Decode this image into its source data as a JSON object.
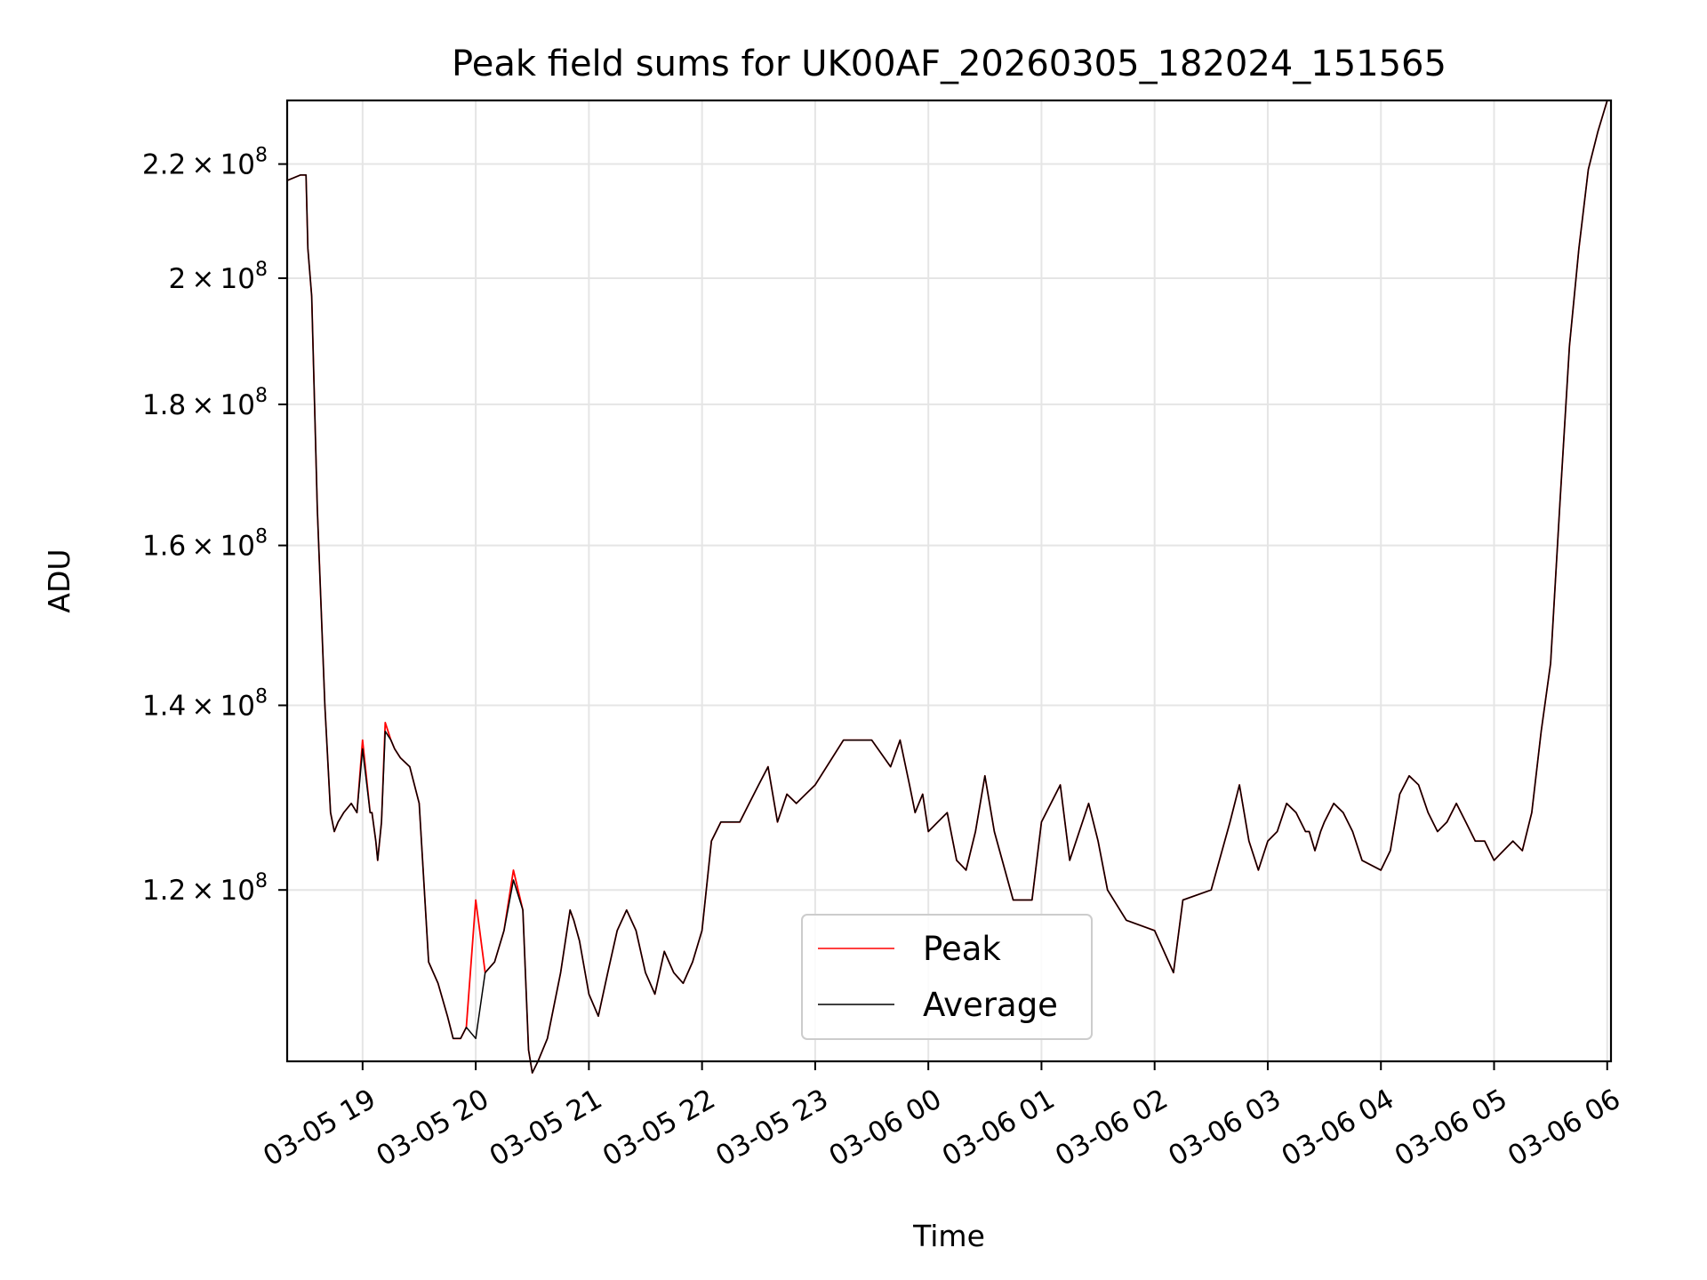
{
  "chart_data": {
    "type": "line",
    "title": "Peak field sums for UK00AF_20260305_182024_151565",
    "xlabel": "Time",
    "ylabel": "ADU",
    "x_scale": "time",
    "y_scale": "log",
    "xlim": [
      "2026-03-05 18:20",
      "2026-03-06 06:02"
    ],
    "ylim": [
      104000000,
      232000000
    ],
    "grid": true,
    "legend_position": "lower center",
    "x_ticks": [
      "2026-03-05 19:00",
      "2026-03-05 20:00",
      "2026-03-05 21:00",
      "2026-03-05 22:00",
      "2026-03-05 23:00",
      "2026-03-06 00:00",
      "2026-03-06 01:00",
      "2026-03-06 02:00",
      "2026-03-06 03:00",
      "2026-03-06 04:00",
      "2026-03-06 05:00",
      "2026-03-06 06:00"
    ],
    "x_tick_labels": [
      "03-05 19",
      "03-05 20",
      "03-05 21",
      "03-05 22",
      "03-05 23",
      "03-06 00",
      "03-06 01",
      "03-06 02",
      "03-06 03",
      "03-06 04",
      "03-06 05",
      "03-06 06"
    ],
    "y_ticks": [
      120000000,
      140000000,
      160000000,
      180000000,
      200000000,
      220000000
    ],
    "y_tick_labels": [
      {
        "mantissa": "1.2",
        "exp": "8"
      },
      {
        "mantissa": "1.4",
        "exp": "8"
      },
      {
        "mantissa": "1.6",
        "exp": "8"
      },
      {
        "mantissa": "1.8",
        "exp": "8"
      },
      {
        "mantissa": "2",
        "exp": "8"
      },
      {
        "mantissa": "2.2",
        "exp": "8"
      }
    ],
    "x": [
      "2026-03-05 18:20",
      "2026-03-05 18:27",
      "2026-03-05 18:30",
      "2026-03-05 18:31",
      "2026-03-05 18:33",
      "2026-03-05 18:36",
      "2026-03-05 18:40",
      "2026-03-05 18:43",
      "2026-03-05 18:45",
      "2026-03-05 18:47",
      "2026-03-05 18:50",
      "2026-03-05 18:54",
      "2026-03-05 18:57",
      "2026-03-05 19:00",
      "2026-03-05 19:04",
      "2026-03-05 19:05",
      "2026-03-05 19:07",
      "2026-03-05 19:08",
      "2026-03-05 19:10",
      "2026-03-05 19:12",
      "2026-03-05 19:15",
      "2026-03-05 19:17",
      "2026-03-05 19:20",
      "2026-03-05 19:25",
      "2026-03-05 19:30",
      "2026-03-05 19:35",
      "2026-03-05 19:40",
      "2026-03-05 19:45",
      "2026-03-05 19:48",
      "2026-03-05 19:52",
      "2026-03-05 19:55",
      "2026-03-05 20:00",
      "2026-03-05 20:05",
      "2026-03-05 20:10",
      "2026-03-05 20:15",
      "2026-03-05 20:20",
      "2026-03-05 20:25",
      "2026-03-05 20:28",
      "2026-03-05 20:30",
      "2026-03-05 20:33",
      "2026-03-05 20:38",
      "2026-03-05 20:45",
      "2026-03-05 20:50",
      "2026-03-05 20:52",
      "2026-03-05 20:55",
      "2026-03-05 21:00",
      "2026-03-05 21:05",
      "2026-03-05 21:10",
      "2026-03-05 21:15",
      "2026-03-05 21:20",
      "2026-03-05 21:25",
      "2026-03-05 21:30",
      "2026-03-05 21:35",
      "2026-03-05 21:40",
      "2026-03-05 21:45",
      "2026-03-05 21:50",
      "2026-03-05 21:55",
      "2026-03-05 22:00",
      "2026-03-05 22:05",
      "2026-03-05 22:10",
      "2026-03-05 22:15",
      "2026-03-05 22:20",
      "2026-03-05 22:25",
      "2026-03-05 22:30",
      "2026-03-05 22:35",
      "2026-03-05 22:40",
      "2026-03-05 22:45",
      "2026-03-05 22:50",
      "2026-03-05 22:55",
      "2026-03-05 23:00",
      "2026-03-05 23:15",
      "2026-03-05 23:30",
      "2026-03-05 23:40",
      "2026-03-05 23:45",
      "2026-03-05 23:50",
      "2026-03-05 23:53",
      "2026-03-05 23:57",
      "2026-03-06 00:00",
      "2026-03-06 00:05",
      "2026-03-06 00:10",
      "2026-03-06 00:15",
      "2026-03-06 00:20",
      "2026-03-06 00:25",
      "2026-03-06 00:30",
      "2026-03-06 00:35",
      "2026-03-06 00:45",
      "2026-03-06 00:55",
      "2026-03-06 01:00",
      "2026-03-06 01:10",
      "2026-03-06 01:15",
      "2026-03-06 01:25",
      "2026-03-06 01:30",
      "2026-03-06 01:35",
      "2026-03-06 01:45",
      "2026-03-06 02:00",
      "2026-03-06 02:10",
      "2026-03-06 02:15",
      "2026-03-06 02:30",
      "2026-03-06 02:40",
      "2026-03-06 02:45",
      "2026-03-06 02:50",
      "2026-03-06 02:55",
      "2026-03-06 03:00",
      "2026-03-06 03:05",
      "2026-03-06 03:10",
      "2026-03-06 03:15",
      "2026-03-06 03:20",
      "2026-03-06 03:22",
      "2026-03-06 03:25",
      "2026-03-06 03:28",
      "2026-03-06 03:30",
      "2026-03-06 03:35",
      "2026-03-06 03:40",
      "2026-03-06 03:45",
      "2026-03-06 03:50",
      "2026-03-06 04:00",
      "2026-03-06 04:05",
      "2026-03-06 04:10",
      "2026-03-06 04:15",
      "2026-03-06 04:20",
      "2026-03-06 04:25",
      "2026-03-06 04:30",
      "2026-03-06 04:35",
      "2026-03-06 04:40",
      "2026-03-06 04:45",
      "2026-03-06 04:50",
      "2026-03-06 04:55",
      "2026-03-06 05:00",
      "2026-03-06 05:05",
      "2026-03-06 05:10",
      "2026-03-06 05:15",
      "2026-03-06 05:20",
      "2026-03-06 05:25",
      "2026-03-06 05:30",
      "2026-03-06 05:35",
      "2026-03-06 05:40",
      "2026-03-06 05:45",
      "2026-03-06 05:50",
      "2026-03-06 05:55",
      "2026-03-06 06:00",
      "2026-03-06 06:02"
    ],
    "series": [
      {
        "name": "Peak",
        "color": "#ff0000",
        "values": [
          217,
          218,
          218,
          205,
          197,
          165,
          140,
          128,
          126,
          127,
          128,
          129,
          128,
          136,
          128,
          128,
          125,
          123,
          127,
          138,
          136,
          135,
          134,
          133,
          129,
          113,
          111,
          108,
          106,
          106,
          107,
          119,
          112,
          113,
          116,
          122,
          118,
          105,
          103,
          104,
          106,
          112,
          118,
          117,
          115,
          110,
          108,
          112,
          116,
          118,
          116,
          112,
          110,
          114,
          112,
          111,
          113,
          116,
          125,
          127,
          127,
          127,
          129,
          131,
          133,
          127,
          130,
          129,
          130,
          131,
          136,
          136,
          133,
          136,
          131,
          128,
          130,
          126,
          127,
          128,
          123,
          122,
          126,
          132,
          126,
          119,
          119,
          127,
          131,
          123,
          129,
          125,
          120,
          117,
          116,
          112,
          119,
          120,
          127,
          131,
          125,
          122,
          125,
          126,
          129,
          128,
          126,
          126,
          124,
          126,
          127,
          129,
          128,
          126,
          123,
          122,
          124,
          130,
          132,
          131,
          128,
          126,
          127,
          129,
          127,
          125,
          125,
          123,
          124,
          125,
          124,
          128,
          137,
          145,
          166,
          189,
          205,
          219,
          226,
          232,
          232
        ]
      },
      {
        "name": "Average",
        "color": "#000000",
        "values": [
          217,
          218,
          218,
          205,
          197,
          165,
          140,
          128,
          126,
          127,
          128,
          129,
          128,
          135,
          128,
          128,
          125,
          123,
          127,
          137,
          136,
          135,
          134,
          133,
          129,
          113,
          111,
          108,
          106,
          106,
          107,
          106,
          112,
          113,
          116,
          121,
          118,
          105,
          103,
          104,
          106,
          112,
          118,
          117,
          115,
          110,
          108,
          112,
          116,
          118,
          116,
          112,
          110,
          114,
          112,
          111,
          113,
          116,
          125,
          127,
          127,
          127,
          129,
          131,
          133,
          127,
          130,
          129,
          130,
          131,
          136,
          136,
          133,
          136,
          131,
          128,
          130,
          126,
          127,
          128,
          123,
          122,
          126,
          132,
          126,
          119,
          119,
          127,
          131,
          123,
          129,
          125,
          120,
          117,
          116,
          112,
          119,
          120,
          127,
          131,
          125,
          122,
          125,
          126,
          129,
          128,
          126,
          126,
          124,
          126,
          127,
          129,
          128,
          126,
          123,
          122,
          124,
          130,
          132,
          131,
          128,
          126,
          127,
          129,
          127,
          125,
          125,
          123,
          124,
          125,
          124,
          128,
          137,
          145,
          166,
          189,
          205,
          219,
          226,
          232,
          232
        ]
      }
    ],
    "value_unit_scale": 1000000
  }
}
